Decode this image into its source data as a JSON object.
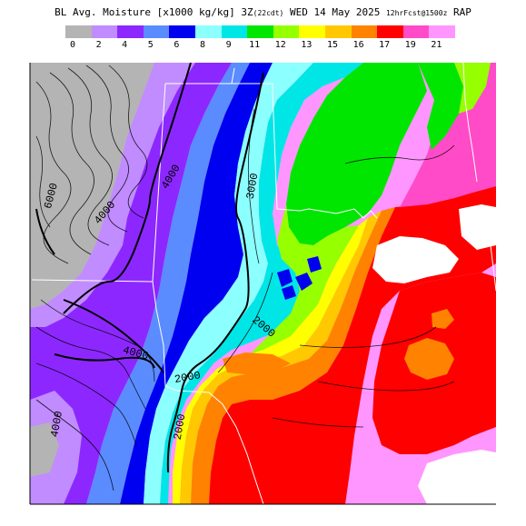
{
  "title": {
    "main": "BL Avg. Moisture [x1000 kg/kg] 3Z",
    "valid_tag": "(22cdt)",
    "date": "WED 14 May 2025",
    "forecast": "12hrFcst@1500z",
    "model": "RAP"
  },
  "legend": {
    "colors": [
      "#b4b4b4",
      "#c08cff",
      "#8c28ff",
      "#5a8cff",
      "#0000f0",
      "#8cffff",
      "#00e6e6",
      "#00e600",
      "#96ff00",
      "#ffff00",
      "#ffc800",
      "#ff8200",
      "#ff0000",
      "#ff4bc8",
      "#ff96ff"
    ],
    "labels": [
      "0",
      "2",
      "4",
      "5",
      "6",
      "8",
      "9",
      "11",
      "12",
      "13",
      "15",
      "16",
      "17",
      "19",
      "21"
    ]
  },
  "contours": {
    "labels": [
      "6000",
      "4000",
      "4000",
      "4000",
      "4000",
      "3000",
      "2000",
      "2000",
      "2000"
    ]
  }
}
